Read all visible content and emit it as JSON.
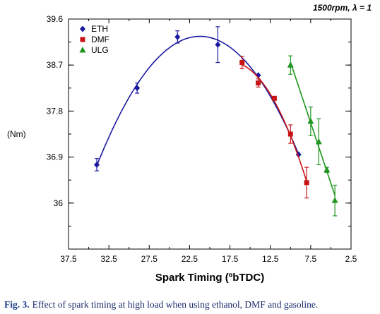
{
  "annotation": "1500rpm, λ = 1",
  "caption": {
    "label": "Fig. 3.",
    "text": "Effect of spark timing at high load when using ethanol, DMF and gasoline."
  },
  "chart_data": {
    "type": "scatter",
    "xlabel": "Spark Timing (ºbTDC)",
    "ylabel": "(Nm)",
    "xlim": [
      37.5,
      2.5
    ],
    "ylim": [
      35.1,
      39.6
    ],
    "x_reversed": true,
    "x_ticks": [
      "37.5",
      "32.5",
      "27.5",
      "22.5",
      "17.5",
      "12.5",
      "7.5",
      "2.5"
    ],
    "y_ticks": [
      "36",
      "36.9",
      "37.8",
      "38.7",
      "39.6"
    ],
    "legend_position": "top-left",
    "series": [
      {
        "name": "ETH",
        "color": "#1a1aa0",
        "marker": "diamond",
        "points": [
          {
            "x": 34,
            "y": 36.75,
            "err": 0.12
          },
          {
            "x": 29,
            "y": 38.25,
            "err": 0.1
          },
          {
            "x": 24,
            "y": 39.25,
            "err": 0.12
          },
          {
            "x": 19,
            "y": 39.1,
            "err": 0.35
          },
          {
            "x": 14,
            "y": 38.5,
            "err": 0.0
          },
          {
            "x": 9,
            "y": 36.95,
            "err": 0.0
          }
        ],
        "fit": "quadratic"
      },
      {
        "name": "DMF",
        "color": "#c81414",
        "marker": "square",
        "points": [
          {
            "x": 16,
            "y": 38.75,
            "err": 0.12
          },
          {
            "x": 14,
            "y": 38.35,
            "err": 0.08
          },
          {
            "x": 12,
            "y": 38.05,
            "err": 0.0
          },
          {
            "x": 10,
            "y": 37.35,
            "err": 0.18
          },
          {
            "x": 8,
            "y": 36.4,
            "err": 0.3
          }
        ],
        "fit": "quadratic"
      },
      {
        "name": "ULG",
        "color": "#1e961e",
        "marker": "triangle",
        "points": [
          {
            "x": 10,
            "y": 38.7,
            "err": 0.18
          },
          {
            "x": 7.5,
            "y": 37.6,
            "err": 0.28
          },
          {
            "x": 6.5,
            "y": 37.2,
            "err": 0.45
          },
          {
            "x": 5.5,
            "y": 36.65,
            "err": 0.05
          },
          {
            "x": 4.5,
            "y": 36.05,
            "err": 0.3
          }
        ],
        "fit": "linear"
      }
    ]
  }
}
